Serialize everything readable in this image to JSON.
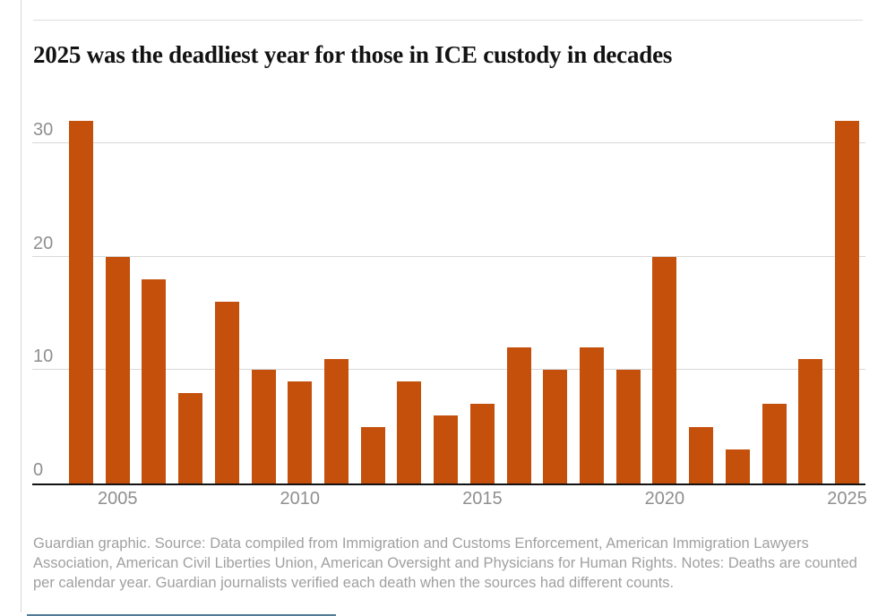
{
  "page": {
    "title": "2025 was the deadliest year for those in ICE custody in decades",
    "source_note": "Guardian graphic. Source: Data compiled from Immigration and Customs Enforcement, American Immigration Lawyers Association, American Civil Liberties Union, American Oversight and Physicians for Human Rights. Notes: Deaths are counted per calendar year. Guardian journalists verified each death when the sources had different counts."
  },
  "colors": {
    "bar": "#c4500c",
    "title_text": "#121212",
    "axis_label": "#8f8f8f",
    "gridline": "#d8d8d8",
    "baseline": "#121212",
    "note_text": "#a0a0a0",
    "hairline": "#dcdcdc",
    "bottom_accent": "#527b97"
  },
  "chart_data": {
    "type": "bar",
    "title": "2025 was the deadliest year for those in ICE custody in decades",
    "xlabel": "",
    "ylabel": "",
    "x": [
      2004,
      2005,
      2006,
      2007,
      2008,
      2009,
      2010,
      2011,
      2012,
      2013,
      2014,
      2015,
      2016,
      2017,
      2018,
      2019,
      2020,
      2021,
      2022,
      2023,
      2024,
      2025
    ],
    "values": [
      32,
      20,
      18,
      8,
      16,
      10,
      9,
      11,
      5,
      9,
      6,
      7,
      12,
      10,
      12,
      10,
      20,
      5,
      3,
      7,
      11,
      32
    ],
    "x_tick_labels": [
      "2005",
      "2010",
      "2015",
      "2020",
      "2025"
    ],
    "y_ticks": [
      0,
      10,
      20,
      30
    ],
    "ylim": [
      0,
      32
    ],
    "grid": "horizontal-only",
    "legend": "none"
  }
}
